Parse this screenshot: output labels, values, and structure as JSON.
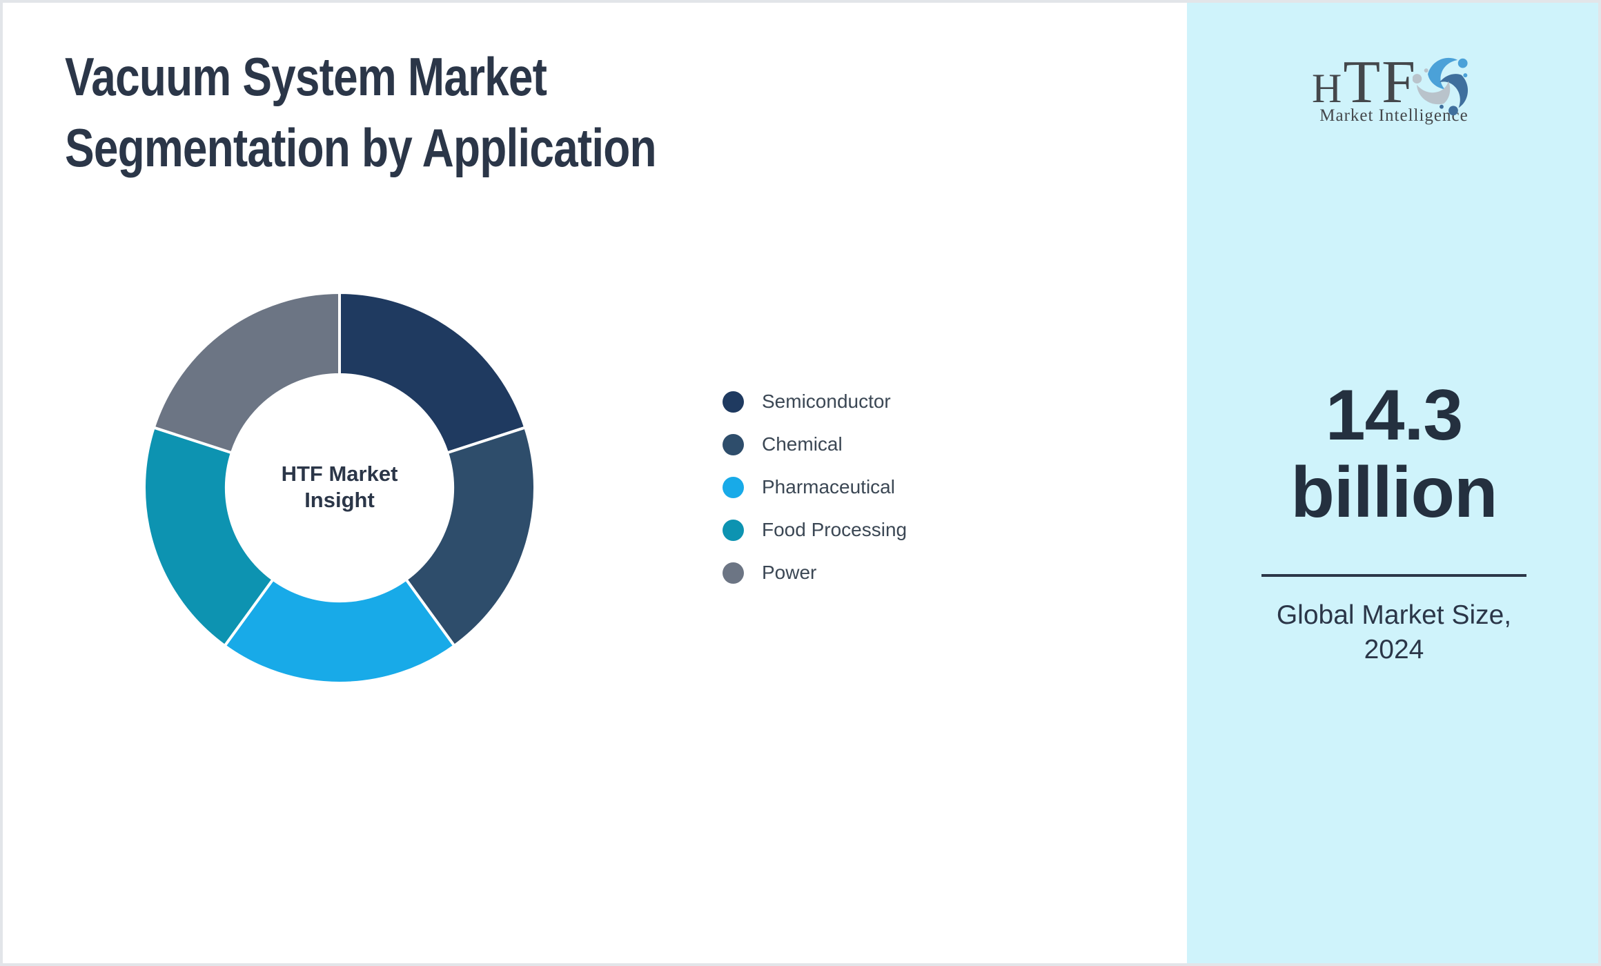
{
  "page": {
    "background": "#ffffff",
    "border_color": "#e2e5e9"
  },
  "header": {
    "title_line1": "Vacuum System Market",
    "title_line2": "Segmentation by Application"
  },
  "chart_data": {
    "type": "pie",
    "subtype": "donut",
    "cutout_ratio": 0.58,
    "start_angle_deg": 0,
    "legend_position": "right",
    "center_label_line1": "HTF Market",
    "center_label_line2": "Insight",
    "categories": [
      "Semiconductor",
      "Chemical",
      "Pharmaceutical",
      "Food Processing",
      "Power"
    ],
    "values": [
      20,
      20,
      20,
      20,
      20
    ],
    "colors": [
      "#1f3a60",
      "#2e4d6b",
      "#18aae8",
      "#0d93b1",
      "#6c7584"
    ],
    "segment_border_color": "#ffffff"
  },
  "sidebar": {
    "background": "#cff3fb",
    "logo": {
      "text_h": "H",
      "text_tf": "TF",
      "subtext": "Market Intelligence",
      "mark_colors": [
        "#4ba1d8",
        "#3f6f9d",
        "#b9c3cb"
      ]
    },
    "market_size_value": "14.3",
    "market_size_unit": "billion",
    "caption_line1": "Global Market Size,",
    "caption_line2": "2024"
  }
}
